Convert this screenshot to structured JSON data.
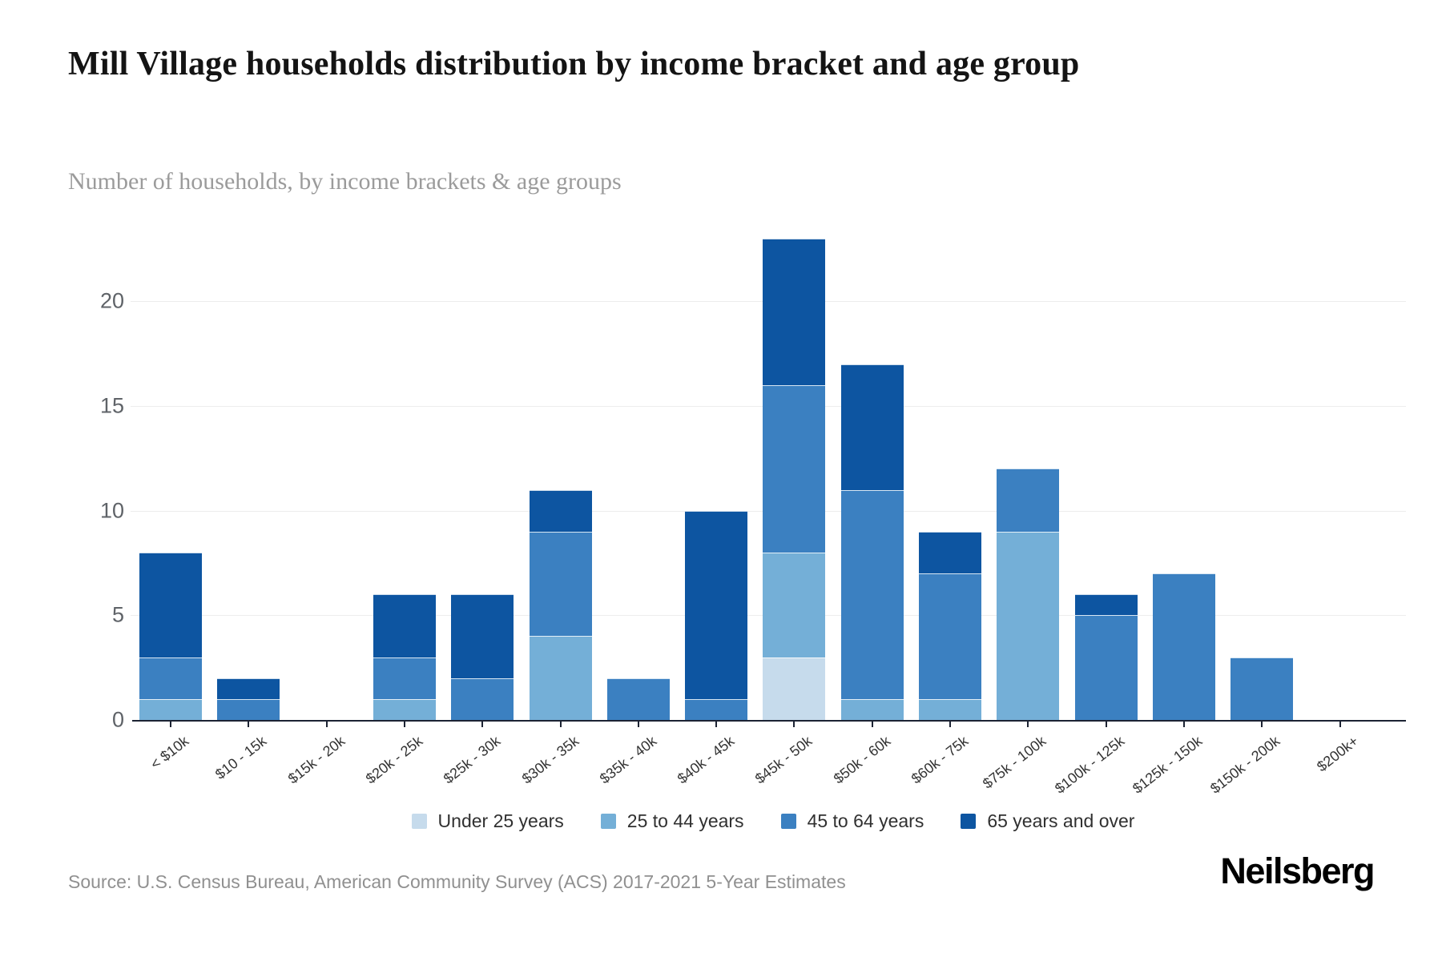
{
  "header": {
    "title": "Mill Village households distribution by income bracket and age group",
    "subtitle": "Number of households, by income brackets & age groups"
  },
  "footer": {
    "source": "Source: U.S. Census Bureau, American Community Survey (ACS) 2017-2021 5-Year Estimates",
    "brand": "Neilsberg"
  },
  "chart_data": {
    "type": "bar",
    "stacked": true,
    "title": "Mill Village households distribution by income bracket and age group",
    "subtitle": "Number of households, by income brackets & age groups",
    "xlabel": "",
    "ylabel": "Number of households",
    "ylim": [
      0,
      23
    ],
    "y_ticks": [
      0,
      5,
      10,
      15,
      20
    ],
    "grid": "horizontal",
    "legend_position": "bottom",
    "categories": [
      "< $10k",
      "$10 - 15k",
      "$15k - 20k",
      "$20k - 25k",
      "$25k - 30k",
      "$30k - 35k",
      "$35k - 40k",
      "$40k - 45k",
      "$45k - 50k",
      "$50k - 60k",
      "$60k - 75k",
      "$75k - 100k",
      "$100k - 125k",
      "$125k - 150k",
      "$150k - 200k",
      "$200k+"
    ],
    "series": [
      {
        "name": "Under 25 years",
        "color": "#c6dbec",
        "values": [
          0,
          0,
          0,
          0,
          0,
          0,
          0,
          0,
          3,
          0,
          0,
          0,
          0,
          0,
          0,
          0
        ]
      },
      {
        "name": "25 to 44 years",
        "color": "#74afd7",
        "values": [
          1,
          0,
          0,
          1,
          0,
          4,
          0,
          0,
          5,
          1,
          1,
          9,
          0,
          0,
          0,
          0
        ]
      },
      {
        "name": "45 to 64 years",
        "color": "#3b80c1",
        "values": [
          2,
          1,
          0,
          2,
          2,
          5,
          2,
          1,
          8,
          10,
          6,
          3,
          5,
          7,
          3,
          0
        ]
      },
      {
        "name": "65 years and over",
        "color": "#0d55a1",
        "values": [
          5,
          1,
          0,
          3,
          4,
          2,
          0,
          9,
          7,
          6,
          2,
          0,
          1,
          0,
          0,
          0
        ]
      }
    ],
    "totals": [
      8,
      2,
      0,
      6,
      6,
      11,
      2,
      10,
      23,
      17,
      9,
      12,
      6,
      7,
      3,
      0
    ]
  }
}
